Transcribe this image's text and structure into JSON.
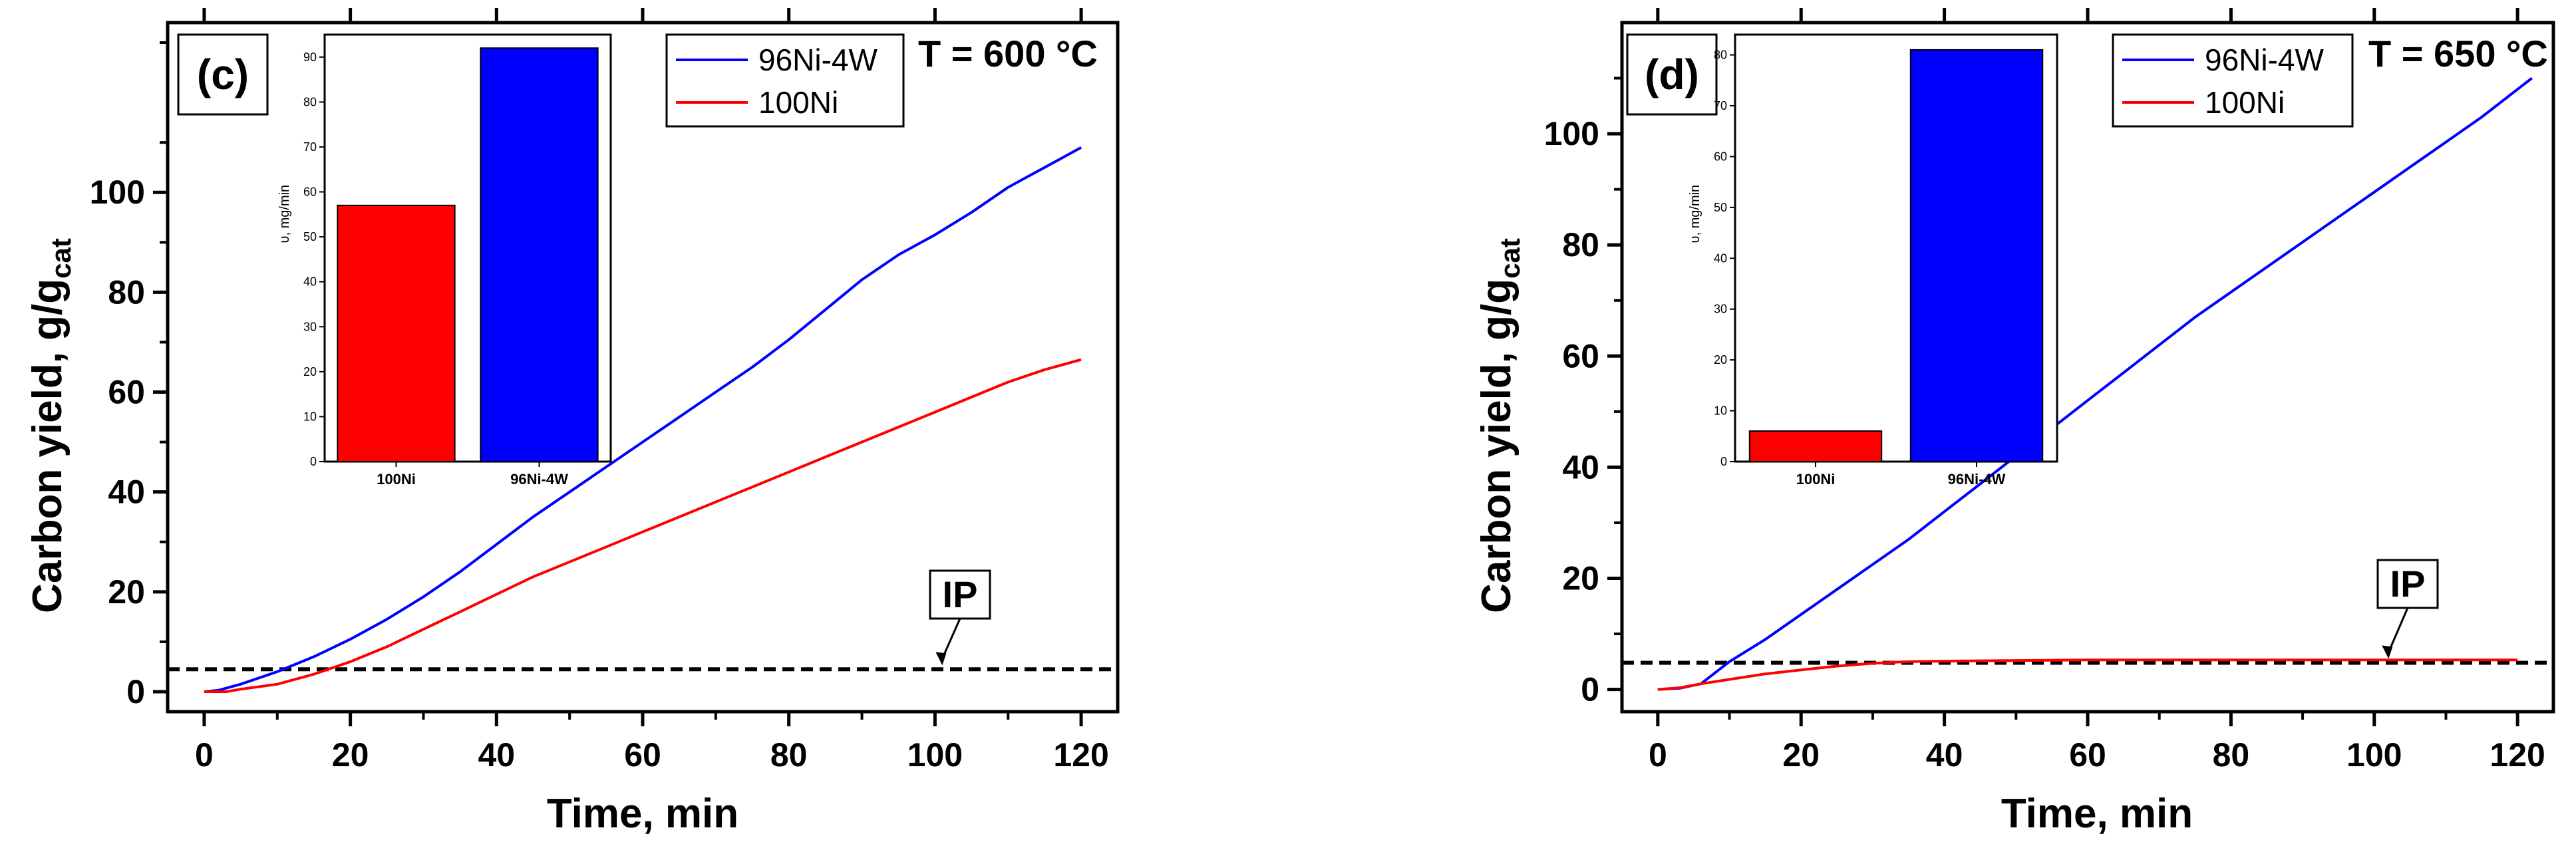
{
  "chart_data": [
    {
      "type": "line",
      "panel_label": "(c)",
      "condition": "T = 600 °C",
      "xlabel": "Time, min",
      "ylabel_main": "Carbon yield, g/g",
      "ylabel_sub": "cat",
      "xlim": [
        -5,
        125
      ],
      "ylim": [
        -4,
        134
      ],
      "xticks": [
        0,
        20,
        40,
        60,
        80,
        100,
        120
      ],
      "yticks": [
        0,
        20,
        40,
        60,
        80,
        100
      ],
      "series": [
        {
          "name": "96Ni-4W",
          "color": "#0000ff",
          "x": [
            0,
            2,
            5,
            10,
            15,
            20,
            25,
            30,
            35,
            40,
            45,
            50,
            55,
            60,
            65,
            70,
            75,
            80,
            85,
            90,
            95,
            100,
            105,
            110,
            115,
            120
          ],
          "y": [
            0,
            0.3,
            1.5,
            4,
            7,
            10.5,
            14.5,
            19,
            24,
            29.5,
            35,
            40,
            45,
            50,
            55,
            60,
            65,
            70.5,
            76.5,
            82.5,
            87.5,
            91.5,
            96,
            101,
            105,
            109
          ]
        },
        {
          "name": "100Ni",
          "color": "#ff0000",
          "x": [
            0,
            3,
            5,
            10,
            15,
            20,
            25,
            30,
            35,
            40,
            45,
            50,
            55,
            60,
            65,
            70,
            75,
            80,
            85,
            90,
            95,
            100,
            105,
            110,
            115,
            120
          ],
          "y": [
            0,
            0,
            0.5,
            1.5,
            3.5,
            6,
            9,
            12.5,
            16,
            19.5,
            23,
            26,
            29,
            32,
            35,
            38,
            41,
            44,
            47,
            50,
            53,
            56,
            59,
            62,
            64.5,
            66.5
          ]
        }
      ],
      "ip_line_y": 4.5,
      "annotation": "IP",
      "annotation_x": 101,
      "inset": {
        "type": "bar",
        "ylabel": "υ, mg/min",
        "ylim": [
          0,
          95
        ],
        "yticks": [
          0,
          10,
          20,
          30,
          40,
          50,
          60,
          70,
          80,
          90
        ],
        "categories": [
          "100Ni",
          "96Ni-4W"
        ],
        "values": [
          57,
          92
        ],
        "colors": [
          "#ff0000",
          "#0000ff"
        ]
      }
    },
    {
      "type": "line",
      "panel_label": "(d)",
      "condition": "T = 650 °C",
      "xlabel": "Time, min",
      "ylabel_main": "Carbon yield, g/g",
      "ylabel_sub": "cat",
      "xlim": [
        -5,
        125
      ],
      "ylim": [
        -4,
        120
      ],
      "xticks": [
        0,
        20,
        40,
        60,
        80,
        100,
        120
      ],
      "yticks": [
        0,
        20,
        40,
        60,
        80,
        100
      ],
      "series": [
        {
          "name": "96Ni-4W",
          "color": "#0000ff",
          "x": [
            0,
            3,
            6,
            10,
            15,
            20,
            25,
            30,
            35,
            40,
            45,
            50,
            55,
            60,
            65,
            70,
            75,
            80,
            85,
            90,
            95,
            100,
            105,
            110,
            115,
            122
          ],
          "y": [
            0,
            0.2,
            1,
            5,
            9,
            13.5,
            18,
            22.5,
            27,
            32,
            37,
            42,
            47,
            52,
            57,
            62,
            67,
            71.5,
            76,
            80.5,
            85,
            89.5,
            94,
            98.5,
            103,
            110
          ]
        },
        {
          "name": "100Ni",
          "color": "#ff0000",
          "x": [
            0,
            3,
            6,
            10,
            15,
            20,
            25,
            30,
            35,
            40,
            50,
            60,
            80,
            100,
            120
          ],
          "y": [
            0,
            0.3,
            1,
            1.8,
            2.8,
            3.5,
            4.2,
            4.7,
            5,
            5.1,
            5.2,
            5.3,
            5.3,
            5.3,
            5.3
          ]
        }
      ],
      "ip_line_y": 4.8,
      "annotation": "IP",
      "annotation_x": 102,
      "inset": {
        "type": "bar",
        "ylabel": "υ, mg/min",
        "ylim": [
          0,
          84
        ],
        "yticks": [
          0,
          10,
          20,
          30,
          40,
          50,
          60,
          70,
          80
        ],
        "categories": [
          "100Ni",
          "96Ni-4W"
        ],
        "values": [
          6,
          81
        ],
        "colors": [
          "#ff0000",
          "#0000ff"
        ]
      }
    }
  ]
}
